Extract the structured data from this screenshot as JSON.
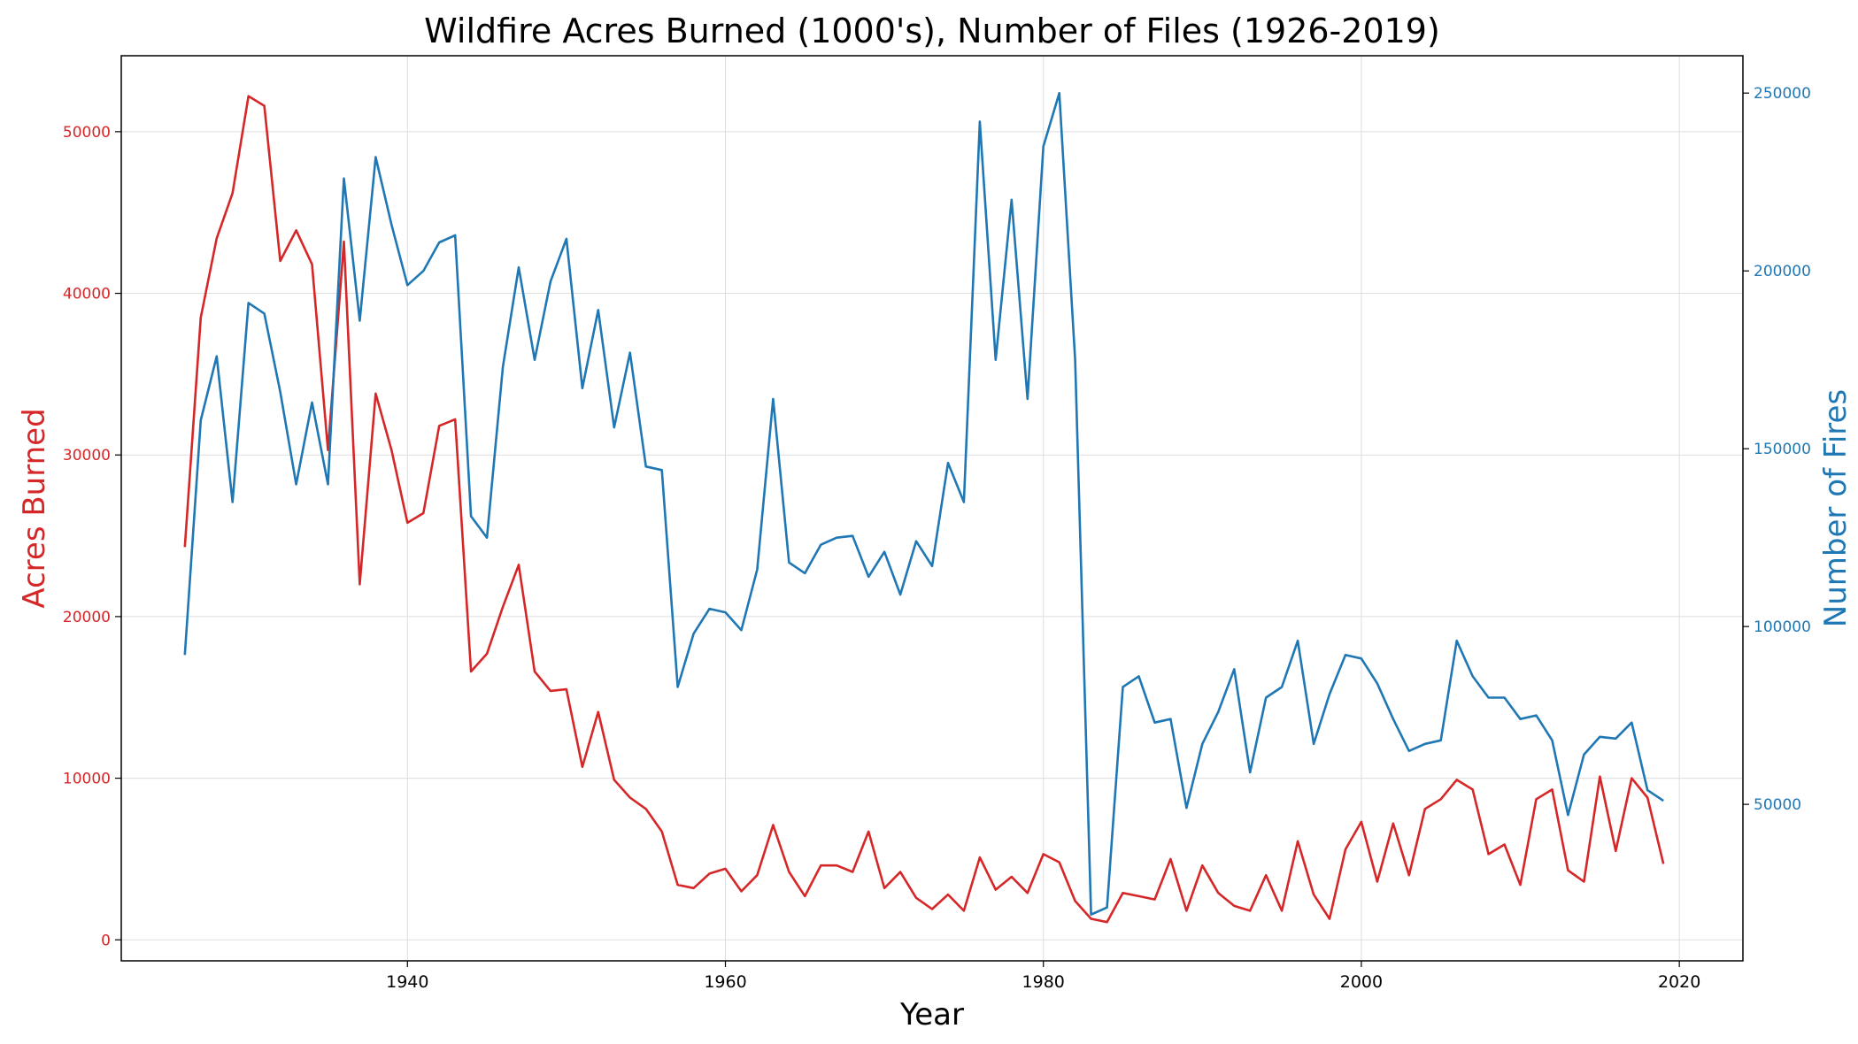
{
  "chart_data": {
    "type": "line",
    "title": "Wildfire Acres Burned (1000's), Number of Files (1926-2019)",
    "xlabel": "Year",
    "xlim": [
      1922,
      2024
    ],
    "xticks": [
      1940,
      1960,
      1980,
      2000,
      2020
    ],
    "grid": true,
    "colors": {
      "left": "#d62728",
      "right": "#1f77b4"
    },
    "x": [
      1926,
      1927,
      1928,
      1929,
      1930,
      1931,
      1932,
      1933,
      1934,
      1935,
      1936,
      1937,
      1938,
      1939,
      1940,
      1941,
      1942,
      1943,
      1944,
      1945,
      1946,
      1947,
      1948,
      1949,
      1950,
      1951,
      1952,
      1953,
      1954,
      1955,
      1956,
      1957,
      1958,
      1959,
      1960,
      1961,
      1962,
      1963,
      1964,
      1965,
      1966,
      1967,
      1968,
      1969,
      1970,
      1971,
      1972,
      1973,
      1974,
      1975,
      1976,
      1977,
      1978,
      1979,
      1980,
      1981,
      1982,
      1983,
      1984,
      1985,
      1986,
      1987,
      1988,
      1989,
      1990,
      1991,
      1992,
      1993,
      1994,
      1995,
      1996,
      1997,
      1998,
      1999,
      2000,
      2001,
      2002,
      2003,
      2004,
      2005,
      2006,
      2007,
      2008,
      2009,
      2010,
      2011,
      2012,
      2013,
      2014,
      2015,
      2016,
      2017,
      2018,
      2019
    ],
    "left_axis": {
      "label": "Acres Burned",
      "ylim": [
        -1300,
        54700
      ],
      "ticks": [
        0,
        10000,
        20000,
        30000,
        40000,
        50000
      ]
    },
    "right_axis": {
      "label": "Number of Fires",
      "ylim": [
        6000,
        260500
      ],
      "ticks": [
        50000,
        100000,
        150000,
        200000,
        250000
      ]
    },
    "series": [
      {
        "name": "Acres Burned",
        "axis": "left",
        "values": [
          24300,
          38500,
          43400,
          46200,
          52200,
          51600,
          42000,
          43900,
          41800,
          30300,
          43200,
          22000,
          33800,
          30300,
          25800,
          26400,
          31800,
          32200,
          16600,
          17700,
          20600,
          23200,
          16600,
          15400,
          15500,
          10700,
          14100,
          9900,
          8800,
          8100,
          6700,
          3400,
          3200,
          4100,
          4400,
          3000,
          4000,
          7100,
          4200,
          2700,
          4600,
          4600,
          4200,
          6700,
          3200,
          4200,
          2600,
          1900,
          2800,
          1800,
          5100,
          3100,
          3900,
          2900,
          5300,
          4800,
          2400,
          1300,
          1100,
          2900,
          2700,
          2500,
          5000,
          1800,
          4600,
          2900,
          2100,
          1800,
          4000,
          1800,
          6100,
          2800,
          1300,
          5600,
          7300,
          3600,
          7200,
          4000,
          8100,
          8700,
          9900,
          9300,
          5300,
          5900,
          3400,
          8700,
          9300,
          4300,
          3600,
          10100,
          5500,
          10000,
          8800,
          4700
        ]
      },
      {
        "name": "Number of Fires",
        "axis": "right",
        "values": [
          92000,
          158000,
          176000,
          135000,
          191000,
          188000,
          166000,
          140000,
          163000,
          140000,
          226000,
          186000,
          232000,
          213000,
          196000,
          200000,
          208000,
          210000,
          131000,
          125000,
          173000,
          201000,
          175000,
          197000,
          209000,
          167000,
          189000,
          156000,
          177000,
          145000,
          144000,
          83000,
          98000,
          105000,
          104000,
          99000,
          116000,
          164000,
          118000,
          115000,
          123000,
          125000,
          125500,
          114000,
          121000,
          109000,
          124000,
          117000,
          146000,
          135000,
          242000,
          175000,
          220000,
          164000,
          235000,
          250000,
          175000,
          19000,
          21000,
          83000,
          86000,
          73000,
          74000,
          49000,
          67000,
          76000,
          88000,
          59000,
          80000,
          83000,
          96000,
          67000,
          81000,
          92000,
          91000,
          84000,
          74000,
          65000,
          67000,
          68000,
          96000,
          86000,
          80000,
          80000,
          74000,
          75000,
          68000,
          47000,
          64000,
          69000,
          68500,
          73000,
          54000,
          51000
        ]
      }
    ]
  }
}
